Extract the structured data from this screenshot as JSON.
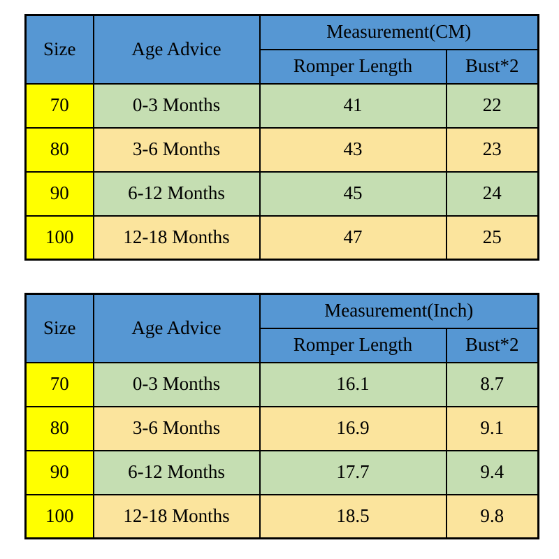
{
  "chart_data": [
    {
      "type": "table",
      "title": "Measurement(CM)",
      "unit": "CM",
      "columns": [
        "Size",
        "Age Advice",
        "Romper Length",
        "Bust*2"
      ],
      "headers": {
        "size": "Size",
        "age": "Age Advice",
        "measurement": "Measurement(CM)",
        "length": "Romper Length",
        "bust": "Bust*2"
      },
      "rows": [
        {
          "size": "70",
          "age": "0-3 Months",
          "length": "41",
          "bust": "22"
        },
        {
          "size": "80",
          "age": "3-6 Months",
          "length": "43",
          "bust": "23"
        },
        {
          "size": "90",
          "age": "6-12 Months",
          "length": "45",
          "bust": "24"
        },
        {
          "size": "100",
          "age": "12-18 Months",
          "length": "47",
          "bust": "25"
        }
      ]
    },
    {
      "type": "table",
      "title": "Measurement(Inch)",
      "unit": "Inch",
      "columns": [
        "Size",
        "Age Advice",
        "Romper Length",
        "Bust*2"
      ],
      "headers": {
        "size": "Size",
        "age": "Age Advice",
        "measurement": "Measurement(Inch)",
        "length": "Romper Length",
        "bust": "Bust*2"
      },
      "rows": [
        {
          "size": "70",
          "age": "0-3 Months",
          "length": "16.1",
          "bust": "8.7"
        },
        {
          "size": "80",
          "age": "3-6 Months",
          "length": "16.9",
          "bust": "9.1"
        },
        {
          "size": "90",
          "age": "6-12 Months",
          "length": "17.7",
          "bust": "9.4"
        },
        {
          "size": "100",
          "age": "12-18 Months",
          "length": "18.5",
          "bust": "9.8"
        }
      ]
    }
  ],
  "colors": {
    "header_blue": "#5697d3",
    "size_yellow": "#ffff00",
    "row_green": "#c5deb2",
    "row_tan": "#fbe49d",
    "border_black": "#000000",
    "background": "#ffffff"
  }
}
